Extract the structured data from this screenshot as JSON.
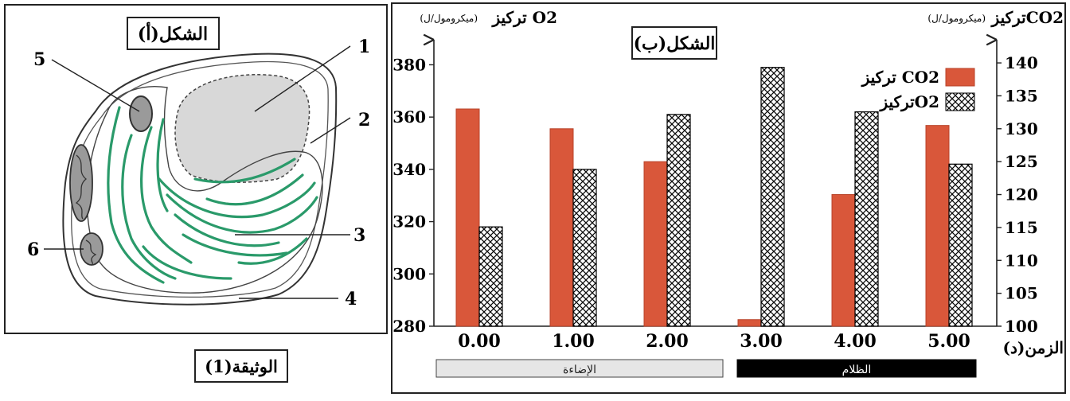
{
  "figure_a": {
    "title": "الشكل(أ)",
    "labels": [
      "1",
      "2",
      "3",
      "4",
      "5",
      "6"
    ]
  },
  "document_label": "الوثيقة(1)",
  "figure_b": {
    "title": "الشكل(ب)",
    "left_axis_title": "تركيز O2",
    "left_axis_unit": "(ميكرومول/ل)",
    "right_axis_title": "تركيزCO2",
    "right_axis_unit": "(ميكرومول/ل)",
    "x_axis_title": "الزمن(د)",
    "phase_light": "الإضاءة",
    "phase_dark": "الظلام"
  },
  "chart_data": {
    "type": "bar",
    "categories": [
      "0.00",
      "1.00",
      "2.00",
      "3.00",
      "4.00",
      "5.00"
    ],
    "xlabel": "الزمن(د)",
    "series": [
      {
        "name": "تركيز CO2",
        "axis": "right",
        "pattern": "solid",
        "color": "#D9573A",
        "values": [
          133,
          130,
          125,
          101,
          120,
          130.5
        ]
      },
      {
        "name": "تركيزO2",
        "axis": "left",
        "pattern": "crosshatch",
        "color": "#000000",
        "values": [
          318,
          340,
          361,
          379,
          362,
          342
        ]
      }
    ],
    "left_axis": {
      "label": "تركيز O2 (ميكرومول/ل)",
      "range": [
        280,
        385
      ],
      "ticks": [
        "280",
        "300",
        "320",
        "340",
        "360",
        "380"
      ]
    },
    "right_axis": {
      "label": "تركيزCO2 (ميكرومول/ل)",
      "range": [
        100,
        141.7
      ],
      "ticks": [
        "100",
        "105",
        "110",
        "115",
        "120",
        "125",
        "130",
        "135",
        "140"
      ]
    },
    "legend_position": "top-right",
    "grid": false
  }
}
